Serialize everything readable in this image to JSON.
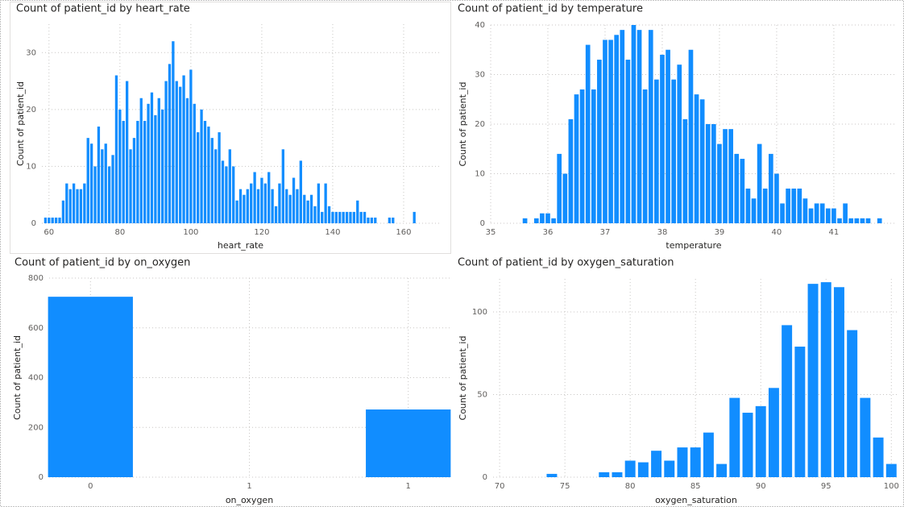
{
  "chart_data": [
    {
      "type": "bar",
      "title": "Count of patient_id by heart_rate",
      "x_label": "heart_rate",
      "y_label": "Count of patient_id",
      "color": "#118dff",
      "grid": true,
      "x": [
        59,
        60,
        61,
        62,
        63,
        64,
        65,
        66,
        67,
        68,
        69,
        70,
        71,
        72,
        73,
        74,
        75,
        76,
        77,
        78,
        79,
        80,
        81,
        82,
        83,
        84,
        85,
        86,
        87,
        88,
        89,
        90,
        91,
        92,
        93,
        94,
        95,
        96,
        97,
        98,
        99,
        100,
        101,
        102,
        103,
        104,
        105,
        106,
        107,
        108,
        109,
        110,
        111,
        112,
        113,
        114,
        115,
        116,
        117,
        118,
        119,
        120,
        121,
        122,
        123,
        124,
        125,
        126,
        127,
        128,
        129,
        130,
        131,
        132,
        133,
        134,
        135,
        136,
        137,
        138,
        139,
        140,
        141,
        142,
        143,
        144,
        145,
        146,
        147,
        148,
        149,
        150,
        151,
        152,
        156,
        157,
        163
      ],
      "values": [
        1,
        1,
        1,
        1,
        1,
        4,
        7,
        6,
        7,
        6,
        6,
        7,
        15,
        14,
        10,
        17,
        13,
        14,
        10,
        12,
        26,
        20,
        18,
        25,
        13,
        15,
        18,
        22,
        18,
        21,
        23,
        19,
        22,
        20,
        25,
        28,
        32,
        25,
        24,
        26,
        22,
        27,
        21,
        16,
        20,
        18,
        17,
        15,
        13,
        16,
        11,
        10,
        13,
        10,
        4,
        6,
        5,
        6,
        7,
        9,
        6,
        8,
        7,
        9,
        6,
        3,
        7,
        13,
        6,
        5,
        8,
        6,
        11,
        5,
        4,
        5,
        3,
        7,
        2,
        7,
        3,
        2,
        2,
        2,
        2,
        2,
        2,
        2,
        4,
        2,
        2,
        1,
        1,
        1,
        1,
        1,
        2
      ],
      "xlim": [
        58,
        170
      ],
      "xticks": [
        60,
        80,
        100,
        120,
        140,
        160
      ],
      "ylim": [
        0,
        35
      ],
      "yticks": [
        0,
        10,
        20,
        30
      ]
    },
    {
      "type": "bar",
      "title": "Count of patient_id by temperature",
      "x_label": "temperature",
      "y_label": "Count of patient_id",
      "color": "#118dff",
      "grid": true,
      "x": [
        35.6,
        35.8,
        35.9,
        36.0,
        36.1,
        36.2,
        36.3,
        36.4,
        36.5,
        36.6,
        36.7,
        36.8,
        36.9,
        37.0,
        37.1,
        37.2,
        37.3,
        37.4,
        37.5,
        37.6,
        37.7,
        37.8,
        37.9,
        38.0,
        38.1,
        38.2,
        38.3,
        38.4,
        38.5,
        38.6,
        38.7,
        38.8,
        38.9,
        39.0,
        39.1,
        39.2,
        39.3,
        39.4,
        39.5,
        39.6,
        39.7,
        39.8,
        39.9,
        40.0,
        40.1,
        40.2,
        40.3,
        40.4,
        40.5,
        40.6,
        40.7,
        40.8,
        40.9,
        41.0,
        41.1,
        41.2,
        41.3,
        41.4,
        41.5,
        41.6,
        41.8
      ],
      "values": [
        1,
        1,
        2,
        2,
        1,
        14,
        10,
        21,
        26,
        27,
        36,
        27,
        33,
        37,
        37,
        38,
        39,
        33,
        40,
        39,
        27,
        39,
        29,
        34,
        35,
        29,
        32,
        21,
        35,
        26,
        25,
        20,
        20,
        16,
        19,
        19,
        14,
        13,
        7,
        5,
        16,
        7,
        14,
        10,
        4,
        7,
        7,
        7,
        5,
        3,
        4,
        4,
        3,
        3,
        1,
        4,
        1,
        1,
        1,
        1,
        1
      ],
      "xlim": [
        35,
        42.1
      ],
      "xticks": [
        35,
        36,
        37,
        38,
        39,
        40,
        41
      ],
      "ylim": [
        0,
        40
      ],
      "yticks": [
        0,
        10,
        20,
        30,
        40
      ]
    },
    {
      "type": "bar",
      "title": "Count of patient_id by on_oxygen",
      "x_label": "on_oxygen",
      "y_label": "Count of patient_id",
      "color": "#118dff",
      "grid": true,
      "x": [
        0,
        1
      ],
      "values": [
        725,
        272
      ],
      "xlim": [
        -0.13,
        1.13
      ],
      "xticks": [
        0,
        {
          "value": 0.5,
          "label": "1"
        },
        1
      ],
      "ylim": [
        0,
        800
      ],
      "yticks": [
        0,
        200,
        400,
        600,
        800
      ]
    },
    {
      "type": "bar",
      "title": "Count of patient_id by oxygen_saturation",
      "x_label": "oxygen_saturation",
      "y_label": "Count of patient_id",
      "color": "#118dff",
      "grid": true,
      "x": [
        74,
        78,
        79,
        80,
        81,
        82,
        83,
        84,
        85,
        86,
        87,
        88,
        89,
        90,
        91,
        92,
        93,
        94,
        95,
        96,
        97,
        98,
        99,
        100
      ],
      "values": [
        2,
        3,
        3,
        10,
        9,
        16,
        10,
        18,
        18,
        27,
        8,
        48,
        39,
        43,
        54,
        92,
        79,
        117,
        118,
        115,
        89,
        48,
        24,
        8
      ],
      "xlim": [
        69.5,
        100.6
      ],
      "xticks": [
        70,
        75,
        80,
        85,
        90,
        95,
        100
      ],
      "ylim": [
        0,
        120
      ],
      "yticks": [
        0,
        50,
        100
      ]
    }
  ]
}
